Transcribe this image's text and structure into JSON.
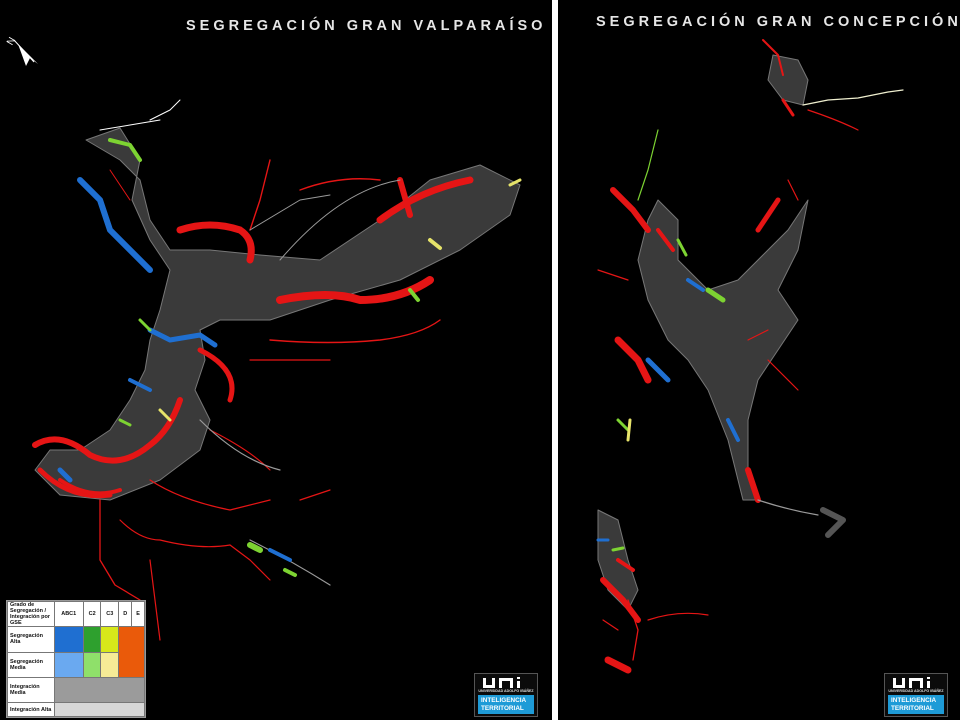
{
  "maps": {
    "left": {
      "title": "SEGREGACIÓN GRAN VALPARAÍSO"
    },
    "right": {
      "title": "SEGREGACIÓN GRAN CONCEPCIÓN"
    }
  },
  "north_arrow": {
    "label": "N",
    "icon": "north-arrow-icon"
  },
  "legend": {
    "header": "Grado de Segregación / Integración por GSE",
    "columns": [
      "ABC1",
      "C2",
      "C3",
      "D",
      "E"
    ],
    "rows": [
      {
        "label": "Segregación Alta",
        "colors": [
          "#1f6fd1",
          "#2ea02e",
          "#d7e81a",
          "#ea5a0a",
          "#ea5a0a"
        ]
      },
      {
        "label": "Segregación Media",
        "colors": [
          "#6aa9f0",
          "#8fe06a",
          "#f6eb96",
          "#ea5a0a",
          "#ea5a0a"
        ]
      },
      {
        "label": "Integración Media",
        "colors": [
          "#9b9b9b"
        ]
      },
      {
        "label": "Integración Alta",
        "colors": [
          "#d7d7d7"
        ]
      }
    ]
  },
  "logo": {
    "mark": "UAI",
    "subtitle": "UNIVERSIDAD ADOLFO IBÁÑEZ",
    "band_line1": "INTELIGENCIA",
    "band_line2": "TERRITORIAL",
    "band_color": "#1e9bd7"
  },
  "map_colors": {
    "segregation_e": "#e51515",
    "integration_medium": "#8a8a8a",
    "abc1": "#1f6fd1",
    "c2": "#7dd332",
    "c3": "#e6e36a"
  }
}
